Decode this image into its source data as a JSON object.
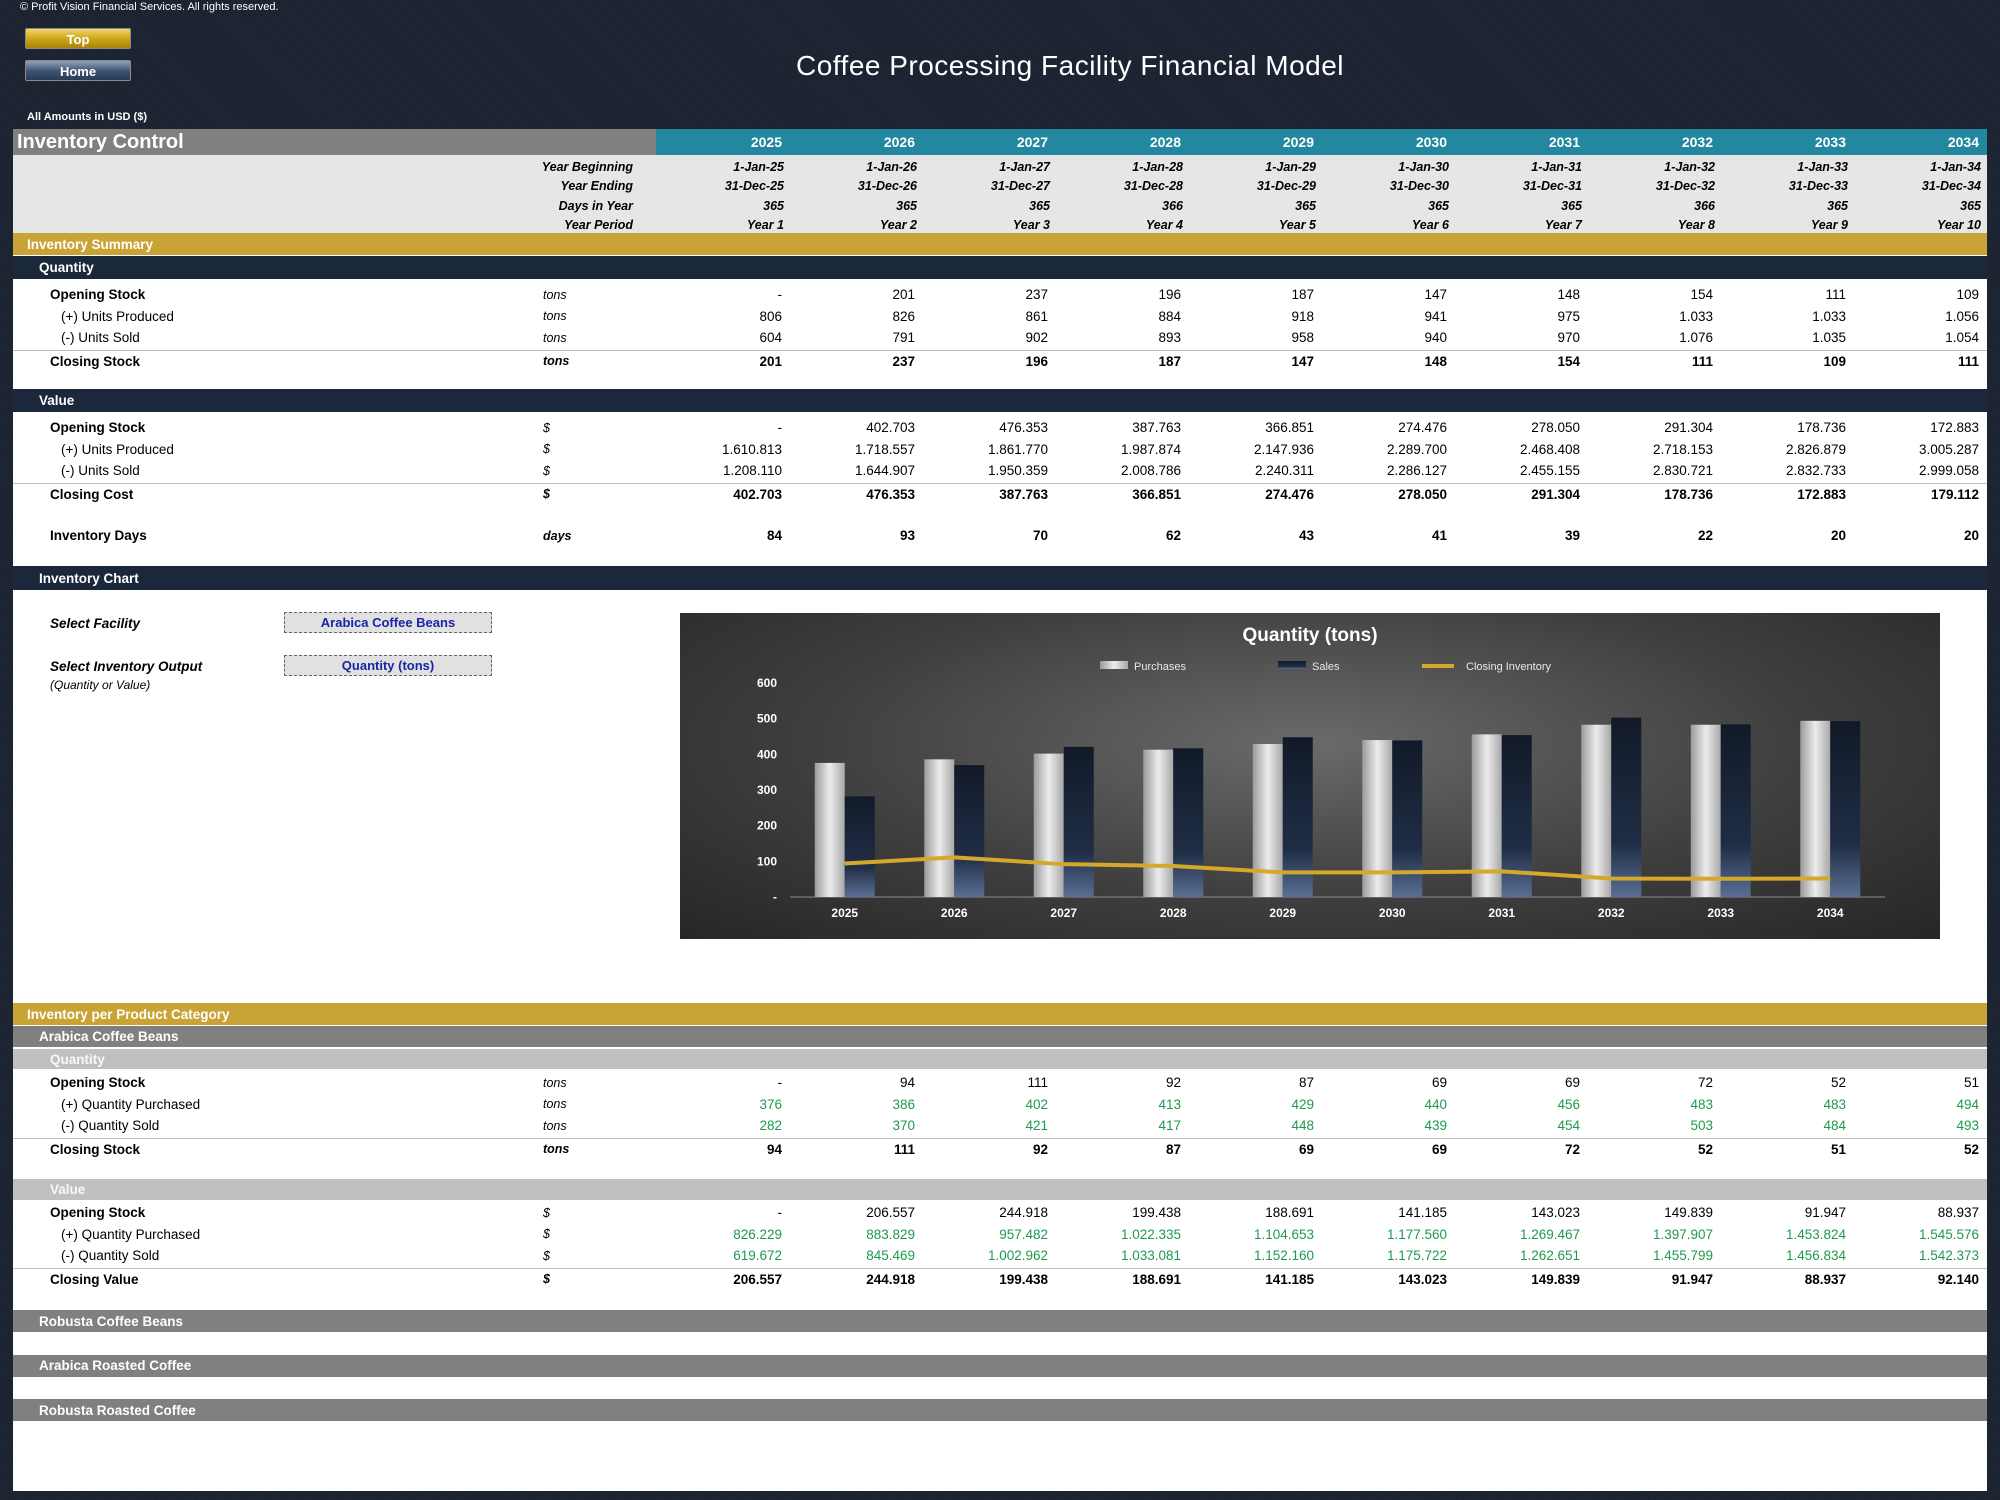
{
  "copyright": "© Profit Vision Financial Services. All rights reserved.",
  "nav": {
    "top_label": "Top",
    "home_label": "Home"
  },
  "title": "Coffee Processing Facility Financial Model",
  "amounts_note": "All Amounts in  USD ($)",
  "section_title": "Inventory Control",
  "years": [
    "2025",
    "2026",
    "2027",
    "2028",
    "2029",
    "2030",
    "2031",
    "2032",
    "2033",
    "2034"
  ],
  "period_labels": [
    "Year Beginning",
    "Year Ending",
    "Days in Year",
    "Year Period"
  ],
  "periods": {
    "begin": [
      "1-Jan-25",
      "1-Jan-26",
      "1-Jan-27",
      "1-Jan-28",
      "1-Jan-29",
      "1-Jan-30",
      "1-Jan-31",
      "1-Jan-32",
      "1-Jan-33",
      "1-Jan-34"
    ],
    "end": [
      "31-Dec-25",
      "31-Dec-26",
      "31-Dec-27",
      "31-Dec-28",
      "31-Dec-29",
      "31-Dec-30",
      "31-Dec-31",
      "31-Dec-32",
      "31-Dec-33",
      "31-Dec-34"
    ],
    "days": [
      "365",
      "365",
      "365",
      "366",
      "365",
      "365",
      "365",
      "366",
      "365",
      "365"
    ],
    "period": [
      "Year 1",
      "Year 2",
      "Year 3",
      "Year 4",
      "Year 5",
      "Year 6",
      "Year 7",
      "Year 8",
      "Year 9",
      "Year 10"
    ]
  },
  "summary": {
    "title": "Inventory Summary",
    "quantity_label": "Quantity",
    "quantity_rows": [
      {
        "label": "Opening Stock",
        "unit": "tons",
        "values": [
          "-",
          "201",
          "237",
          "196",
          "187",
          "147",
          "148",
          "154",
          "111",
          "109"
        ]
      },
      {
        "label": "(+) Units Produced",
        "unit": "tons",
        "values": [
          "806",
          "826",
          "861",
          "884",
          "918",
          "941",
          "975",
          "1.033",
          "1.033",
          "1.056"
        ]
      },
      {
        "label": "(-) Units Sold",
        "unit": "tons",
        "values": [
          "604",
          "791",
          "902",
          "893",
          "958",
          "940",
          "970",
          "1.076",
          "1.035",
          "1.054"
        ]
      },
      {
        "label": "Closing Stock",
        "unit": "tons",
        "values": [
          "201",
          "237",
          "196",
          "187",
          "147",
          "148",
          "154",
          "111",
          "109",
          "111"
        ]
      }
    ],
    "value_label": "Value",
    "value_rows": [
      {
        "label": "Opening Stock",
        "unit": "$",
        "values": [
          "-",
          "402.703",
          "476.353",
          "387.763",
          "366.851",
          "274.476",
          "278.050",
          "291.304",
          "178.736",
          "172.883"
        ]
      },
      {
        "label": "(+) Units Produced",
        "unit": "$",
        "values": [
          "1.610.813",
          "1.718.557",
          "1.861.770",
          "1.987.874",
          "2.147.936",
          "2.289.700",
          "2.468.408",
          "2.718.153",
          "2.826.879",
          "3.005.287"
        ]
      },
      {
        "label": "(-) Units Sold",
        "unit": "$",
        "values": [
          "1.208.110",
          "1.644.907",
          "1.950.359",
          "2.008.786",
          "2.240.311",
          "2.286.127",
          "2.455.155",
          "2.830.721",
          "2.832.733",
          "2.999.058"
        ]
      },
      {
        "label": "Closing Cost",
        "unit": "$",
        "values": [
          "402.703",
          "476.353",
          "387.763",
          "366.851",
          "274.476",
          "278.050",
          "291.304",
          "178.736",
          "172.883",
          "179.112"
        ]
      }
    ],
    "days_row": {
      "label": "Inventory Days",
      "unit": "days",
      "values": [
        "84",
        "93",
        "70",
        "62",
        "43",
        "41",
        "39",
        "22",
        "20",
        "20"
      ]
    }
  },
  "chart_section": {
    "title": "Inventory Chart",
    "select_facility_label": "Select Facility",
    "select_facility_value": "Arabica Coffee Beans",
    "select_output_label": "Select Inventory Output",
    "select_output_note": "(Quantity or Value)",
    "select_output_value": "Quantity (tons)"
  },
  "chart_data": {
    "type": "bar",
    "title": "Quantity (tons)",
    "categories": [
      "2025",
      "2026",
      "2027",
      "2028",
      "2029",
      "2030",
      "2031",
      "2032",
      "2033",
      "2034"
    ],
    "series": [
      {
        "name": "Purchases",
        "type": "bar",
        "values": [
          376,
          386,
          402,
          413,
          429,
          440,
          456,
          483,
          483,
          494
        ],
        "color": "#c4c4c4"
      },
      {
        "name": "Sales",
        "type": "bar",
        "values": [
          282,
          370,
          421,
          417,
          448,
          439,
          454,
          503,
          484,
          493
        ],
        "color": "#1a2638"
      },
      {
        "name": "Closing Inventory",
        "type": "line",
        "values": [
          94,
          111,
          92,
          87,
          69,
          69,
          72,
          52,
          51,
          52
        ],
        "color": "#d4a82a"
      }
    ],
    "ylim": [
      0,
      600
    ],
    "yticks": [
      "-",
      "100",
      "200",
      "300",
      "400",
      "500",
      "600"
    ],
    "legend": "top"
  },
  "category_section": {
    "title": "Inventory per Product Category",
    "arabica": {
      "title": "Arabica Coffee Beans",
      "quantity_label": "Quantity",
      "quantity_rows": [
        {
          "label": "Opening Stock",
          "unit": "tons",
          "values": [
            "-",
            "94",
            "111",
            "92",
            "87",
            "69",
            "69",
            "72",
            "52",
            "51"
          ]
        },
        {
          "label": "(+) Quantity Purchased",
          "unit": "tons",
          "values": [
            "376",
            "386",
            "402",
            "413",
            "429",
            "440",
            "456",
            "483",
            "483",
            "494"
          ]
        },
        {
          "label": "(-) Quantity Sold",
          "unit": "tons",
          "values": [
            "282",
            "370",
            "421",
            "417",
            "448",
            "439",
            "454",
            "503",
            "484",
            "493"
          ]
        },
        {
          "label": "Closing Stock",
          "unit": "tons",
          "values": [
            "94",
            "111",
            "92",
            "87",
            "69",
            "69",
            "72",
            "52",
            "51",
            "52"
          ]
        }
      ],
      "value_label": "Value",
      "value_rows": [
        {
          "label": "Opening Stock",
          "unit": "$",
          "values": [
            "-",
            "206.557",
            "244.918",
            "199.438",
            "188.691",
            "141.185",
            "143.023",
            "149.839",
            "91.947",
            "88.937"
          ]
        },
        {
          "label": "(+) Quantity Purchased",
          "unit": "$",
          "values": [
            "826.229",
            "883.829",
            "957.482",
            "1.022.335",
            "1.104.653",
            "1.177.560",
            "1.269.467",
            "1.397.907",
            "1.453.824",
            "1.545.576"
          ]
        },
        {
          "label": "(-) Quantity Sold",
          "unit": "$",
          "values": [
            "619.672",
            "845.469",
            "1.002.962",
            "1.033.081",
            "1.152.160",
            "1.175.722",
            "1.262.651",
            "1.455.799",
            "1.456.834",
            "1.542.373"
          ]
        },
        {
          "label": "Closing Value",
          "unit": "$",
          "values": [
            "206.557",
            "244.918",
            "199.438",
            "188.691",
            "141.185",
            "143.023",
            "149.839",
            "91.947",
            "88.937",
            "92.140"
          ]
        }
      ]
    },
    "collapsed": [
      "Robusta Coffee Beans",
      "Arabica Roasted Coffee",
      "Robusta Roasted Coffee"
    ]
  }
}
